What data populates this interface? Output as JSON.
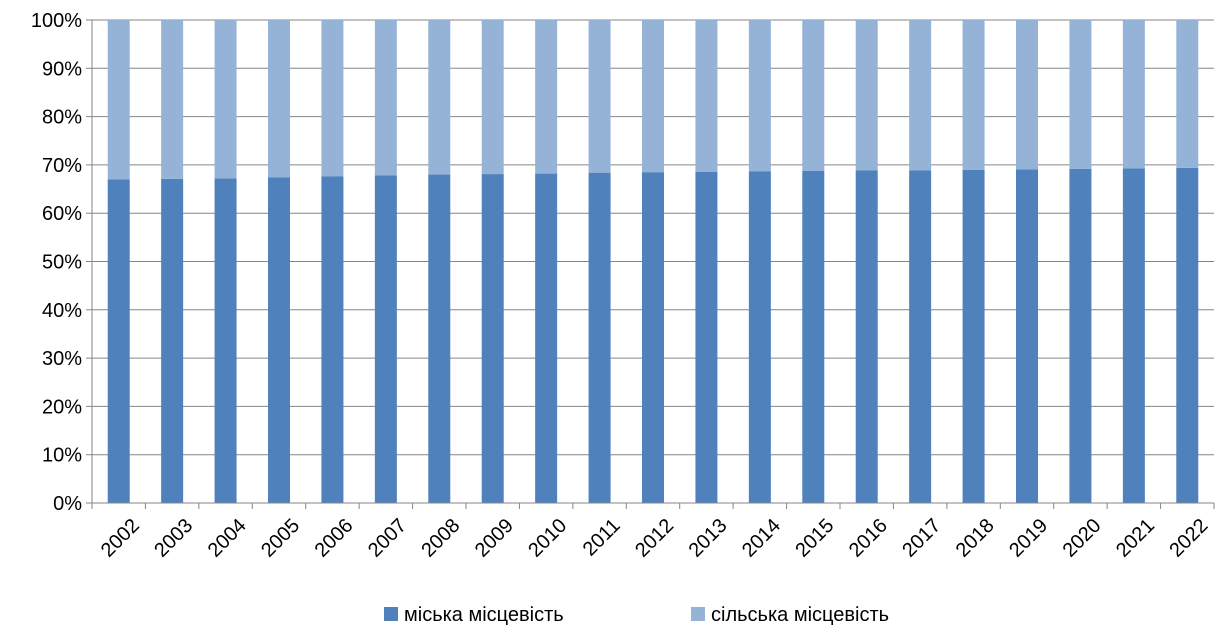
{
  "chart_data": {
    "type": "bar",
    "stacked": true,
    "percent_stacked": true,
    "categories": [
      "2002",
      "2003",
      "2004",
      "2005",
      "2006",
      "2007",
      "2008",
      "2009",
      "2010",
      "2011",
      "2012",
      "2013",
      "2014",
      "2015",
      "2016",
      "2017",
      "2018",
      "2019",
      "2020",
      "2021",
      "2022"
    ],
    "series": [
      {
        "name": "міська місцевість",
        "color": "#4F81BD",
        "values": [
          67.0,
          67.1,
          67.2,
          67.4,
          67.6,
          67.8,
          68.0,
          68.1,
          68.2,
          68.4,
          68.5,
          68.6,
          68.7,
          68.8,
          68.9,
          68.9,
          69.0,
          69.1,
          69.2,
          69.3,
          69.4
        ]
      },
      {
        "name": "сільська місцевість",
        "color": "#95B3D7",
        "values": [
          33.0,
          32.9,
          32.8,
          32.6,
          32.4,
          32.2,
          32.0,
          31.9,
          31.8,
          31.6,
          31.5,
          31.4,
          31.3,
          31.2,
          31.1,
          31.1,
          31.0,
          30.9,
          30.8,
          30.7,
          30.6
        ]
      }
    ],
    "y_tick_labels": [
      "0%",
      "10%",
      "20%",
      "30%",
      "40%",
      "50%",
      "60%",
      "70%",
      "80%",
      "90%",
      "100%"
    ],
    "ylim": [
      0,
      100
    ],
    "grid": true,
    "legend_position": "bottom",
    "title": "",
    "xlabel": "",
    "ylabel": ""
  }
}
